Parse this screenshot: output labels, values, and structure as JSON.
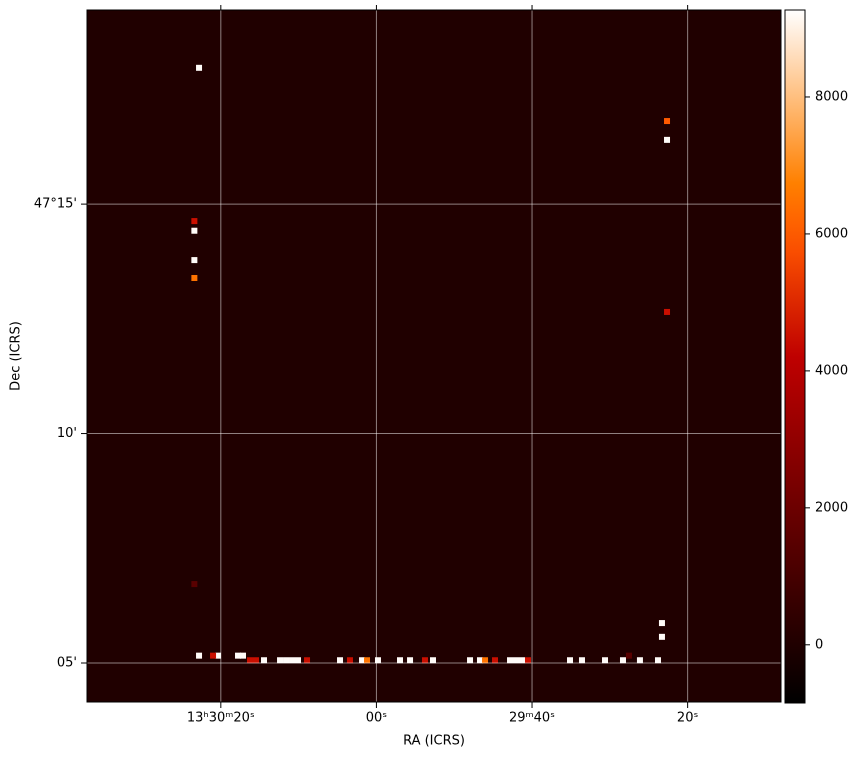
{
  "chart_data": {
    "type": "image",
    "xlabel": "RA (ICRS)",
    "ylabel": "Dec (ICRS)",
    "xlim": [
      97.2,
      8.0
    ],
    "ylim": [
      4.15,
      19.23
    ],
    "xticks": [
      {
        "value": 80,
        "label": "13ʰ30ᵐ20ˢ"
      },
      {
        "value": 60,
        "label": "00ˢ"
      },
      {
        "value": 40,
        "label": "29ᵐ40ˢ"
      },
      {
        "value": 20,
        "label": "20ˢ"
      }
    ],
    "yticks": [
      {
        "value": 15,
        "label": "47°15'"
      },
      {
        "value": 10,
        "label": "10'"
      },
      {
        "value": 5,
        "label": "05'"
      }
    ],
    "grid": true,
    "colormap": "gist_heat",
    "clim": [
      -850,
      9270
    ],
    "cticks": [
      0,
      2000,
      4000,
      6000,
      8000
    ],
    "background": 0,
    "pixels": {
      "ra": [
        82.8,
        83.4,
        83.4,
        83.4,
        83.4,
        83.4,
        22.65,
        22.65,
        22.65,
        23.3,
        23.3,
        82.8,
        80.36,
        77.79,
        77.15,
        81.0,
        76.25,
        75.48,
        74.45,
        72.39,
        71.62,
        70.85,
        70.08,
        68.92,
        64.68,
        63.4,
        61.85,
        61.21,
        59.8,
        56.97,
        55.68,
        53.76,
        52.73,
        47.97,
        46.69,
        46.04,
        44.76,
        42.83,
        42.06,
        41.29,
        40.52,
        35.12,
        33.58,
        30.62,
        28.31,
        27.54,
        26.13,
        23.81
      ],
      "dec": [
        17.97,
        14.63,
        14.42,
        13.78,
        13.39,
        6.72,
        16.81,
        16.4,
        12.65,
        5.87,
        5.57,
        5.16,
        5.16,
        5.16,
        5.16,
        5.16,
        5.06,
        5.06,
        5.06,
        5.06,
        5.06,
        5.06,
        5.06,
        5.06,
        5.06,
        5.06,
        5.06,
        5.06,
        5.06,
        5.06,
        5.06,
        5.06,
        5.06,
        5.06,
        5.06,
        5.06,
        5.06,
        5.06,
        5.06,
        5.06,
        5.06,
        5.06,
        5.06,
        5.06,
        5.06,
        5.16,
        5.06,
        5.06
      ],
      "values": [
        9200,
        4500,
        9200,
        9200,
        6500,
        1500,
        6000,
        9200,
        4500,
        9200,
        9200,
        9200,
        9200,
        9200,
        9200,
        4500,
        4500,
        4500,
        9200,
        9200,
        9200,
        9200,
        9200,
        4500,
        9200,
        4500,
        9200,
        6500,
        9200,
        9200,
        9200,
        4500,
        9200,
        9200,
        9200,
        6500,
        4500,
        9200,
        9200,
        9200,
        4500,
        9200,
        9200,
        9200,
        9200,
        1500,
        9200,
        9200
      ]
    }
  }
}
